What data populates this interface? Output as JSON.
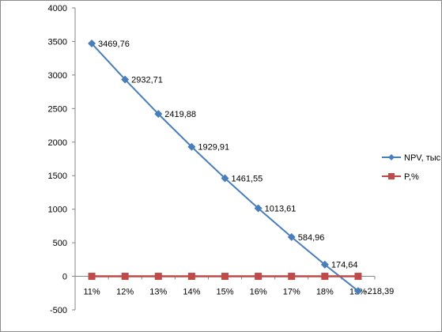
{
  "chart_data": {
    "type": "line",
    "categories": [
      "11%",
      "12%",
      "13%",
      "14%",
      "15%",
      "16%",
      "17%",
      "18%",
      "19%"
    ],
    "series": [
      {
        "name": "NPV, тыс. $",
        "values": [
          3469.76,
          2932.71,
          2419.88,
          1929.91,
          1461.55,
          1013.61,
          584.96,
          174.64,
          -218.39
        ],
        "labels": [
          "3469,76",
          "2932,71",
          "2419,88",
          "1929,91",
          "1461,55",
          "1013,61",
          "584,96",
          "174,64",
          "-218,39"
        ],
        "color": "#4a7ebb",
        "marker": "diamond"
      },
      {
        "name": "P,%",
        "values": [
          0,
          0,
          0,
          0,
          0,
          0,
          0,
          0,
          0
        ],
        "color": "#be4b48",
        "marker": "square"
      }
    ],
    "y_ticks": [
      "-500",
      "0",
      "500",
      "1000",
      "1500",
      "2000",
      "2500",
      "3000",
      "3500",
      "4000"
    ],
    "ylim": [
      -500,
      4000
    ],
    "grid": false,
    "legend_position": "right"
  }
}
